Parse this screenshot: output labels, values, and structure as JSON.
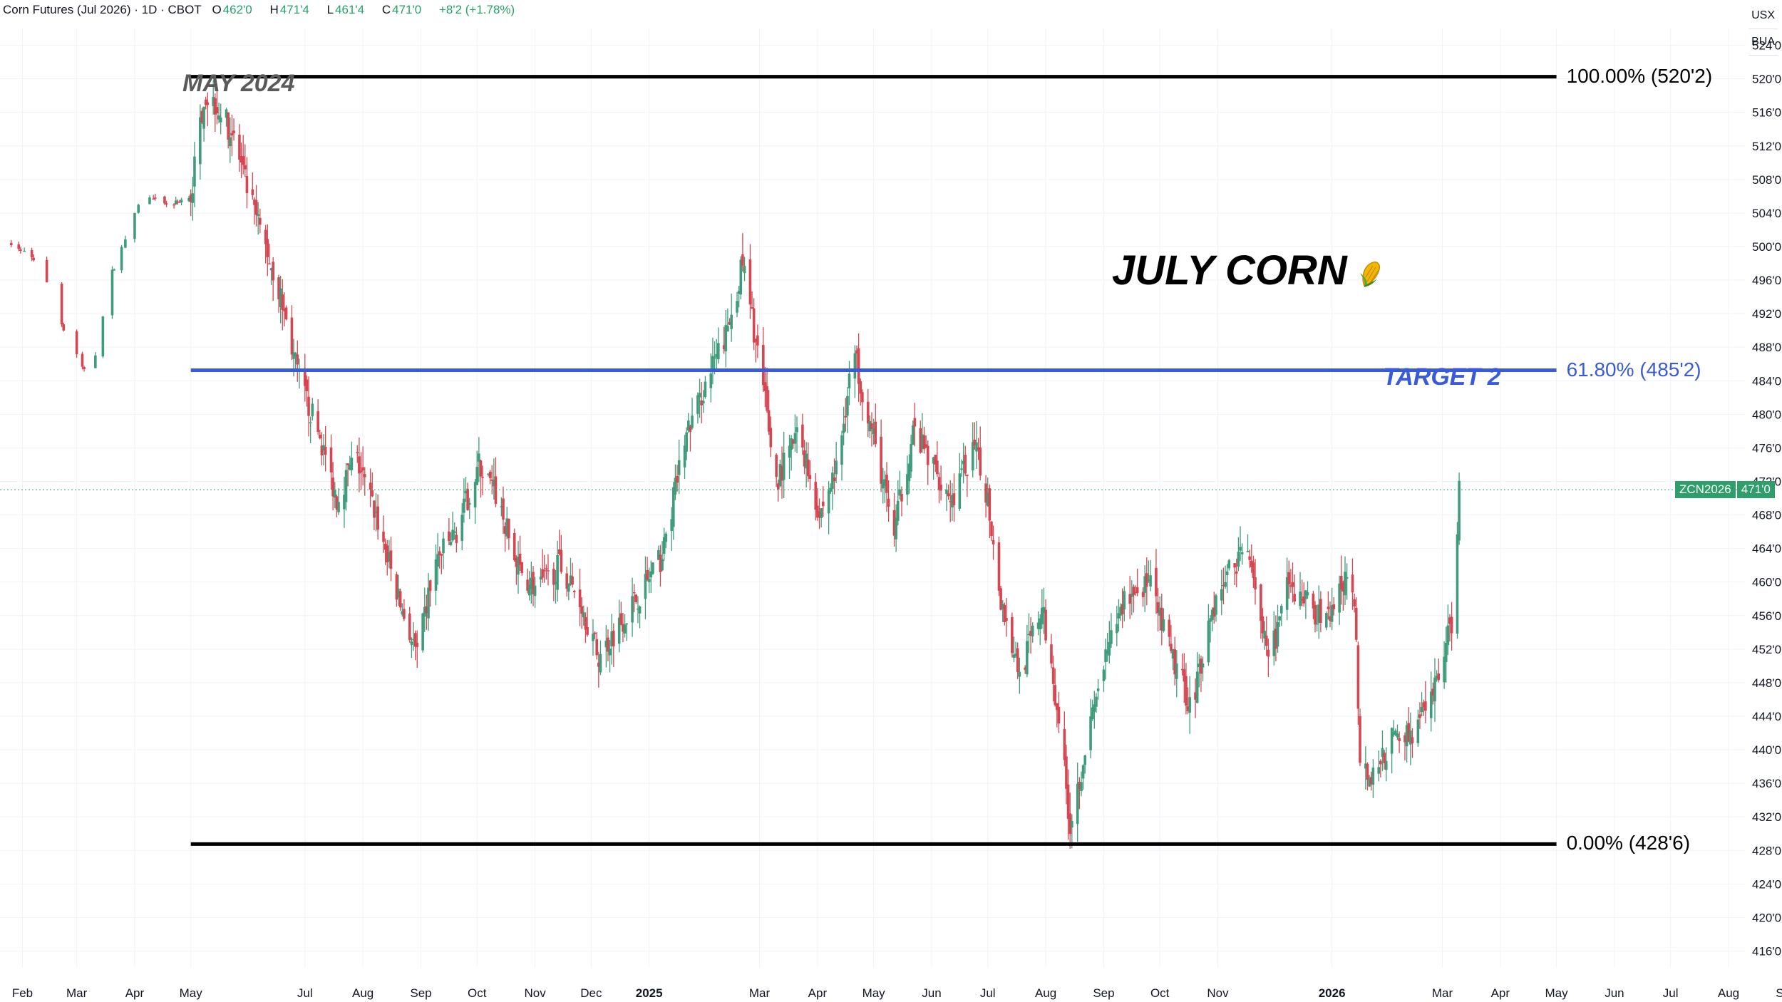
{
  "header": {
    "symbol_line": "Corn Futures (Jul 2026) · 1D · CBOT",
    "o_key": "O",
    "o_val": "462'0",
    "h_key": "H",
    "h_val": "471'4",
    "l_key": "L",
    "l_val": "461'4",
    "c_key": "C",
    "c_val": "471'0",
    "change": "+8'2 (+1.78%)"
  },
  "currency": {
    "unit_1": "USX",
    "unit_2": "BUA"
  },
  "annotations": {
    "top_label": "MAY 2024",
    "title": "JULY CORN",
    "title_icon": "corn-icon",
    "target_label": "TARGET 2"
  },
  "fib_levels": [
    {
      "label": "100.00% (520'2)",
      "price": 520.25,
      "color": "#000000"
    },
    {
      "label": "61.80% (485'2)",
      "price": 485.25,
      "color": "#3a5bd9"
    },
    {
      "label": "0.00% (428'6)",
      "price": 428.75,
      "color": "#000000"
    }
  ],
  "last_price": {
    "ticker": "ZCN2026",
    "value": "471'0",
    "price": 471.0
  },
  "colors": {
    "up": "#3f9c7a",
    "down": "#d64550",
    "fib_blue": "#3a5bd9",
    "tag_green": "#2e9e6a"
  },
  "chart_data": {
    "type": "candlestick",
    "ylim": [
      414,
      526
    ],
    "y_ticks": [
      "416'0",
      "420'0",
      "424'0",
      "428'0",
      "432'0",
      "436'0",
      "440'0",
      "444'0",
      "448'0",
      "452'0",
      "456'0",
      "460'0",
      "464'0",
      "468'0",
      "472'0",
      "476'0",
      "480'0",
      "484'0",
      "488'0",
      "492'0",
      "496'0",
      "500'0",
      "504'0",
      "508'0",
      "512'0",
      "516'0",
      "520'0",
      "524'0"
    ],
    "x_ticks": [
      "Feb",
      "Mar",
      "Apr",
      "May",
      "Jul",
      "Aug",
      "Sep",
      "Oct",
      "Nov",
      "Dec",
      "2025",
      "Mar",
      "Apr",
      "May",
      "Jun",
      "Jul",
      "Aug",
      "Sep",
      "Oct",
      "Nov",
      "2026",
      "Mar",
      "Apr",
      "May",
      "Jun",
      "Jul",
      "Aug",
      "Sep"
    ],
    "x_tick_dates": [
      "2024-02-01",
      "2024-03-01",
      "2024-04-01",
      "2024-05-01",
      "2024-07-01",
      "2024-08-01",
      "2024-09-01",
      "2024-10-01",
      "2024-11-01",
      "2024-12-01",
      "2025-01-01",
      "2025-03-01",
      "2025-04-01",
      "2025-05-01",
      "2025-06-01",
      "2025-07-01",
      "2025-08-01",
      "2025-09-01",
      "2025-10-01",
      "2025-11-01",
      "2026-01-01",
      "2026-03-01",
      "2026-04-01",
      "2026-05-01",
      "2026-06-01",
      "2026-07-01",
      "2026-08-01",
      "2026-09-01"
    ],
    "x_range": [
      "2024-01-20",
      "2026-09-10"
    ],
    "price_path": [
      [
        "2024-01-25",
        500.5
      ],
      [
        "2024-02-10",
        498
      ],
      [
        "2024-02-25",
        489
      ],
      [
        "2024-03-08",
        484
      ],
      [
        "2024-03-20",
        497
      ],
      [
        "2024-04-05",
        506
      ],
      [
        "2024-04-20",
        505
      ],
      [
        "2024-05-01",
        506
      ],
      [
        "2024-05-08",
        518
      ],
      [
        "2024-05-15",
        517
      ],
      [
        "2024-05-24",
        513
      ],
      [
        "2024-06-01",
        506
      ],
      [
        "2024-06-10",
        500
      ],
      [
        "2024-06-18",
        494
      ],
      [
        "2024-06-28",
        484
      ],
      [
        "2024-07-08",
        478
      ],
      [
        "2024-07-18",
        470
      ],
      [
        "2024-07-28",
        475
      ],
      [
        "2024-08-08",
        468
      ],
      [
        "2024-08-20",
        458
      ],
      [
        "2024-08-30",
        451
      ],
      [
        "2024-09-08",
        462
      ],
      [
        "2024-09-20",
        466
      ],
      [
        "2024-10-02",
        474
      ],
      [
        "2024-10-12",
        470
      ],
      [
        "2024-10-22",
        462
      ],
      [
        "2024-11-02",
        459
      ],
      [
        "2024-11-14",
        462
      ],
      [
        "2024-11-25",
        458
      ],
      [
        "2024-12-05",
        451
      ],
      [
        "2024-12-16",
        455
      ],
      [
        "2024-12-28",
        459
      ],
      [
        "2025-01-08",
        463
      ],
      [
        "2025-01-20",
        477
      ],
      [
        "2025-02-01",
        484
      ],
      [
        "2025-02-12",
        490
      ],
      [
        "2025-02-20",
        498
      ],
      [
        "2025-03-01",
        486
      ],
      [
        "2025-03-10",
        472
      ],
      [
        "2025-03-22",
        478
      ],
      [
        "2025-04-02",
        468
      ],
      [
        "2025-04-12",
        474
      ],
      [
        "2025-04-20",
        488
      ],
      [
        "2025-04-30",
        478
      ],
      [
        "2025-05-12",
        466
      ],
      [
        "2025-05-22",
        478
      ],
      [
        "2025-06-01",
        474
      ],
      [
        "2025-06-12",
        470
      ],
      [
        "2025-06-24",
        476
      ],
      [
        "2025-07-01",
        470
      ],
      [
        "2025-07-08",
        458
      ],
      [
        "2025-07-18",
        449
      ],
      [
        "2025-07-30",
        457
      ],
      [
        "2025-08-08",
        444
      ],
      [
        "2025-08-14",
        431
      ],
      [
        "2025-08-22",
        440
      ],
      [
        "2025-09-01",
        450
      ],
      [
        "2025-09-12",
        458
      ],
      [
        "2025-09-25",
        460
      ],
      [
        "2025-10-06",
        452
      ],
      [
        "2025-10-18",
        445
      ],
      [
        "2025-10-28",
        456
      ],
      [
        "2025-11-08",
        462
      ],
      [
        "2025-11-18",
        464
      ],
      [
        "2025-11-28",
        450
      ],
      [
        "2025-12-08",
        459
      ],
      [
        "2025-12-18",
        458
      ],
      [
        "2025-12-28",
        455
      ],
      [
        "2026-01-08",
        460
      ],
      [
        "2026-01-13",
        458
      ],
      [
        "2026-01-16",
        440
      ],
      [
        "2026-01-22",
        436
      ],
      [
        "2026-02-01",
        441
      ],
      [
        "2026-02-12",
        442
      ],
      [
        "2026-02-22",
        445
      ],
      [
        "2026-03-02",
        452
      ],
      [
        "2026-03-06",
        455
      ],
      [
        "2026-03-10",
        471
      ]
    ],
    "annotation_dates": {
      "fib_start": "2024-05-01",
      "fib_end": "2026-05-01"
    }
  }
}
